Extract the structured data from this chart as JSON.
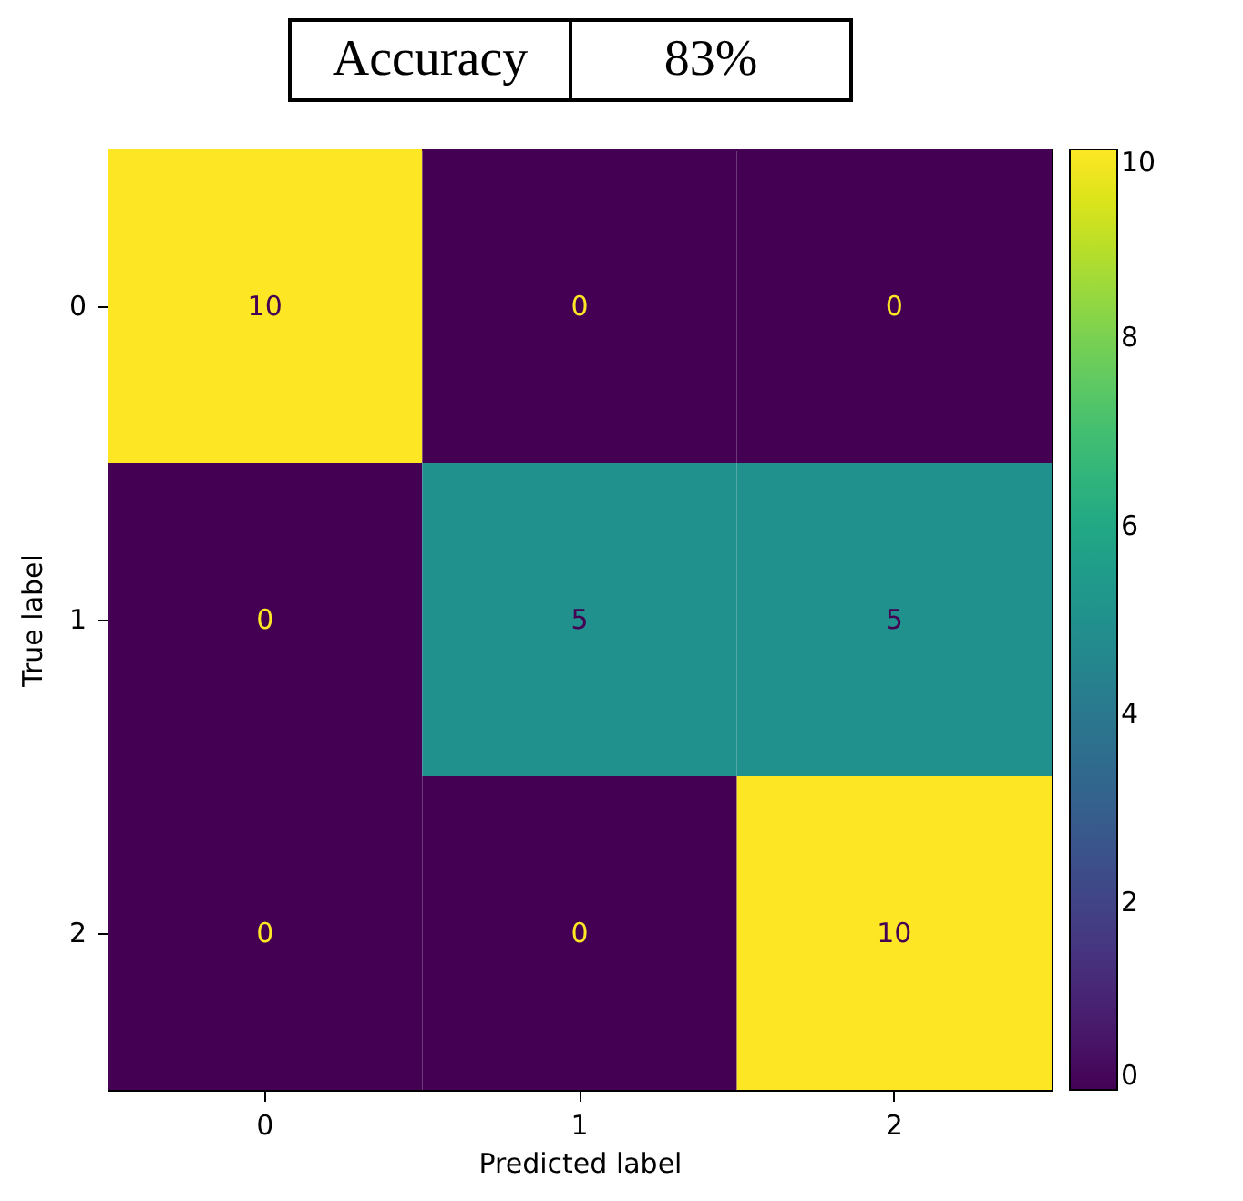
{
  "chart_data": {
    "type": "heatmap",
    "xlabel": "Predicted label",
    "ylabel": "True label",
    "categories": [
      "0",
      "1",
      "2"
    ],
    "y_categories": [
      "0",
      "1",
      "2"
    ],
    "cells": [
      [
        10,
        0,
        0
      ],
      [
        0,
        5,
        5
      ],
      [
        0,
        0,
        10
      ]
    ],
    "clim": [
      0,
      10
    ],
    "cticks": [
      0,
      2,
      4,
      6,
      8,
      10
    ],
    "data_labels": true,
    "annotations": [
      "Accuracy",
      "83%"
    ]
  }
}
